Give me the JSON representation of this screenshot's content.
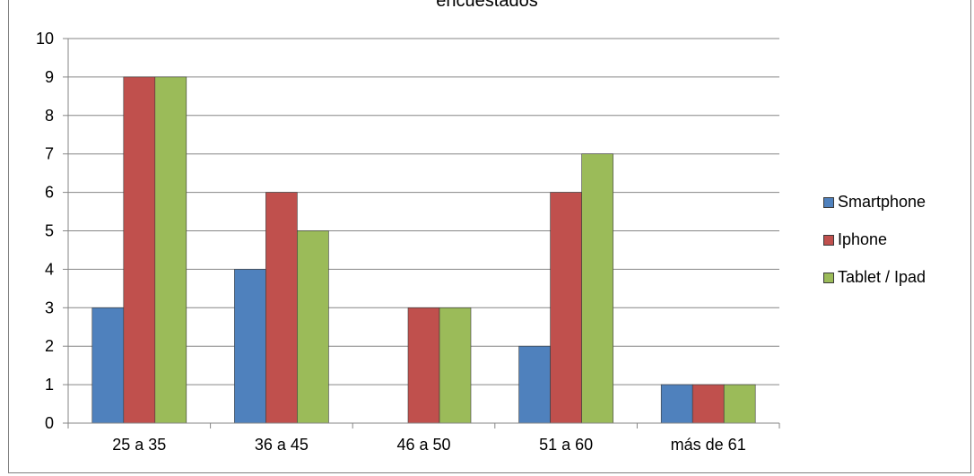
{
  "chart_data": {
    "type": "bar",
    "title": "encuestados",
    "categories": [
      "25 a 35",
      "36 a 45",
      "46 a 50",
      "51 a 60",
      "más de 61"
    ],
    "series": [
      {
        "name": "Smartphone",
        "values": [
          3,
          4,
          0,
          2,
          1
        ],
        "color": "#4F81BD"
      },
      {
        "name": "Iphone",
        "values": [
          9,
          6,
          3,
          6,
          1
        ],
        "color": "#C0504D"
      },
      {
        "name": "Tablet / Ipad",
        "values": [
          9,
          5,
          3,
          7,
          1
        ],
        "color": "#9BBB59"
      }
    ],
    "ylim": [
      0,
      10
    ],
    "yticks": [
      "0",
      "1",
      "2",
      "3",
      "4",
      "5",
      "6",
      "7",
      "8",
      "9",
      "10"
    ],
    "grid": true,
    "legend_position": "right"
  }
}
